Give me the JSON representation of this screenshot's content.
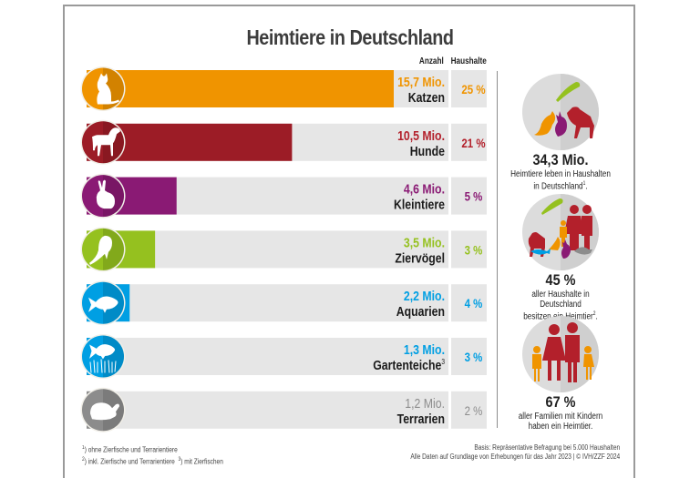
{
  "title": "Heimtiere in Deutschland",
  "column_headers": {
    "count": "Anzahl",
    "households": "Haushalte"
  },
  "chart_data": {
    "type": "bar",
    "orientation": "horizontal",
    "title": "Heimtiere in Deutschland",
    "xlabel": "Anzahl",
    "unit": "Mio.",
    "categories": [
      "Katzen",
      "Hunde",
      "Kleintiere",
      "Ziervögel",
      "Aquarien",
      "Gartenteiche",
      "Terrarien"
    ],
    "category_superscripts": [
      "",
      "",
      "",
      "",
      "",
      "3",
      ""
    ],
    "values": [
      15.7,
      10.5,
      4.6,
      3.5,
      2.2,
      1.3,
      1.2
    ],
    "value_labels": [
      "15,7 Mio.",
      "10,5 Mio.",
      "4,6 Mio.",
      "3,5 Mio.",
      "2,2 Mio.",
      "1,3 Mio.",
      "1,2 Mio."
    ],
    "household_share_percent": [
      25,
      21,
      5,
      3,
      4,
      3,
      2
    ],
    "household_share_labels": [
      "25 %",
      "21 %",
      "5 %",
      "3 %",
      "4 %",
      "3 %",
      "2 %"
    ],
    "colors": [
      "#f09400",
      "#9c1c26",
      "#8a1a74",
      "#95c11f",
      "#009fe3",
      "#009fe3",
      "#8c8c8c"
    ],
    "icons": [
      "cat-icon",
      "dog-icon",
      "rabbit-icon",
      "parrot-icon",
      "fish-icon",
      "pond-fish-icon",
      "turtle-icon"
    ],
    "xlim": [
      0,
      16.5
    ],
    "grid": false,
    "legend": "none"
  },
  "side_panels": [
    {
      "value": "34,3 Mio.",
      "text_line1": "Heimtiere leben in Haushalten",
      "text_line2": "in Deutschland",
      "sup": "1",
      "suffix": "."
    },
    {
      "value": "45 %",
      "text_line1": "aller Haushalte in Deutschland",
      "text_line2": "besitzen ein Heimtier",
      "sup": "2",
      "suffix": "."
    },
    {
      "value": "67 %",
      "text_line1": "aller Familien mit Kindern",
      "text_line2": "haben ein Heimtier.",
      "sup": "",
      "suffix": ""
    }
  ],
  "footnotes": {
    "line1": ") ohne Zierfische und Terrarientiere",
    "line2a": ") inkl. Zierfische und Terrarientiere",
    "line2b": ") mit Zierfischen",
    "sup1": "1",
    "sup2": "2",
    "sup3": "3"
  },
  "source": {
    "line1": "Basis: Repräsentative Befragung bei 5.000 Haushalten",
    "line2": "Alle Daten auf Grundlage von Erhebungen für das Jahr 2023 | © IVH/ZZF 2024"
  },
  "palette": {
    "track": "#e6e6e6",
    "circle_bg": "#dcdcdc",
    "text_dark": "#1f1f1f",
    "orange": "#f09400",
    "red": "#b3202b",
    "purple": "#8a1a74",
    "green": "#95c11f",
    "blue": "#009fe3",
    "grey": "#8c8c8c"
  }
}
